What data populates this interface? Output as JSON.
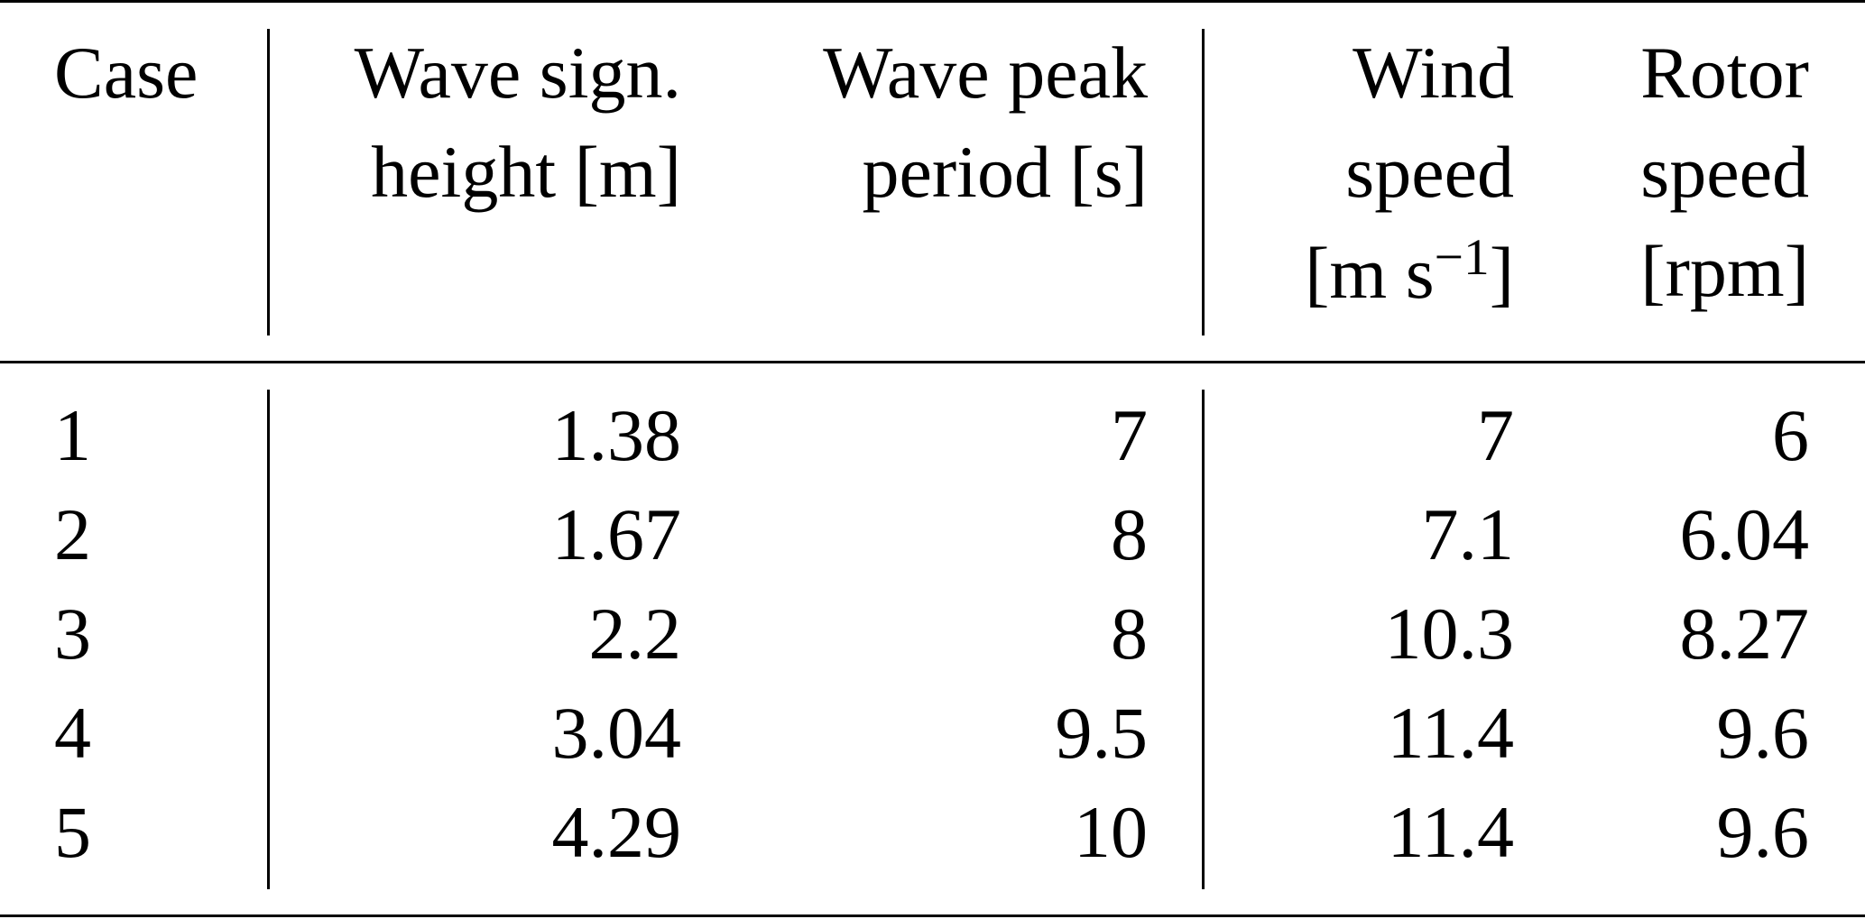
{
  "table": {
    "headers": {
      "case": "Case",
      "wave_height": [
        "Wave sign.",
        "height [m]"
      ],
      "wave_period": [
        "Wave peak",
        "period [s]"
      ],
      "wind_speed": [
        "Wind",
        "speed",
        "[m s",
        "−1",
        "]"
      ],
      "rotor_speed": [
        "Rotor",
        "speed",
        "[rpm]"
      ]
    },
    "rows": [
      {
        "case": "1",
        "wave_height": "1.38",
        "wave_period": "7",
        "wind_speed": "7",
        "rotor_speed": "6"
      },
      {
        "case": "2",
        "wave_height": "1.67",
        "wave_period": "8",
        "wind_speed": "7.1",
        "rotor_speed": "6.04"
      },
      {
        "case": "3",
        "wave_height": "2.2",
        "wave_period": "8",
        "wind_speed": "10.3",
        "rotor_speed": "8.27"
      },
      {
        "case": "4",
        "wave_height": "3.04",
        "wave_period": "9.5",
        "wind_speed": "11.4",
        "rotor_speed": "9.6"
      },
      {
        "case": "5",
        "wave_height": "4.29",
        "wave_period": "10",
        "wind_speed": "11.4",
        "rotor_speed": "9.6"
      }
    ]
  }
}
